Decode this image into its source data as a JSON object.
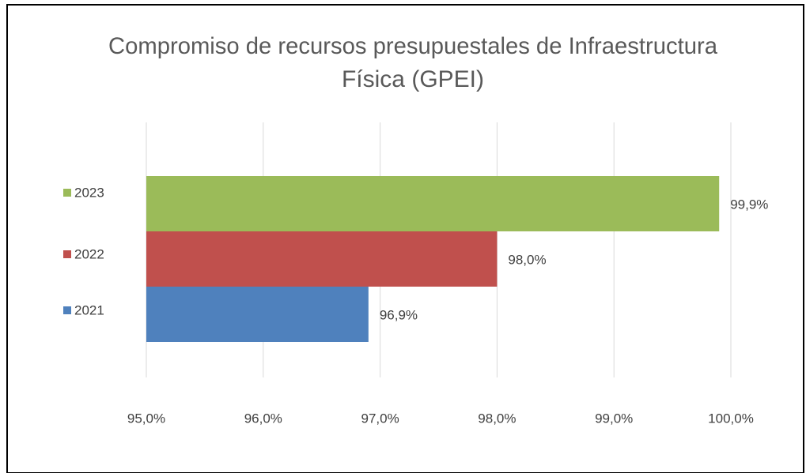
{
  "chart_data": {
    "type": "bar",
    "orientation": "horizontal",
    "title": [
      "Compromiso de recursos presupuestales de Infraestructura",
      "Física (GPEI)"
    ],
    "series": [
      {
        "name": "2021",
        "color": "#4f81bd",
        "values": [
          96.9
        ],
        "value_labels": [
          "96,9%"
        ]
      },
      {
        "name": "2022",
        "color": "#c0504d",
        "values": [
          98.0
        ],
        "value_labels": [
          "98,0%"
        ]
      },
      {
        "name": "2023",
        "color": "#9bbb59",
        "values": [
          99.9
        ],
        "value_labels": [
          "99,9%"
        ]
      }
    ],
    "xlim": [
      95,
      100
    ],
    "xticks": [
      {
        "value": 95,
        "label": "95,0%"
      },
      {
        "value": 96,
        "label": "96,0%"
      },
      {
        "value": 97,
        "label": "97,0%"
      },
      {
        "value": 98,
        "label": "98,0%"
      },
      {
        "value": 99,
        "label": "99,0%"
      },
      {
        "value": 100,
        "label": "100,0%"
      }
    ],
    "grid": true,
    "legend": "left"
  }
}
